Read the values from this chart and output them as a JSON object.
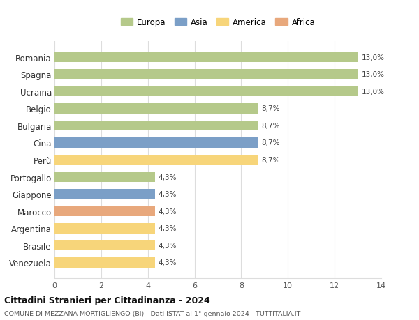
{
  "categories": [
    "Romania",
    "Spagna",
    "Ucraina",
    "Belgio",
    "Bulgaria",
    "Cina",
    "Perù",
    "Portogallo",
    "Giappone",
    "Marocco",
    "Argentina",
    "Brasile",
    "Venezuela"
  ],
  "values": [
    13.0,
    13.0,
    13.0,
    8.7,
    8.7,
    8.7,
    8.7,
    4.3,
    4.3,
    4.3,
    4.3,
    4.3,
    4.3
  ],
  "labels": [
    "13,0%",
    "13,0%",
    "13,0%",
    "8,7%",
    "8,7%",
    "8,7%",
    "8,7%",
    "4,3%",
    "4,3%",
    "4,3%",
    "4,3%",
    "4,3%",
    "4,3%"
  ],
  "continents": [
    "Europa",
    "Europa",
    "Europa",
    "Europa",
    "Europa",
    "Asia",
    "America",
    "Europa",
    "Asia",
    "Africa",
    "America",
    "America",
    "America"
  ],
  "colors": {
    "Europa": "#b5c98a",
    "Asia": "#7b9fc7",
    "America": "#f7d57a",
    "Africa": "#e8a87c"
  },
  "legend_order": [
    "Europa",
    "Asia",
    "America",
    "Africa"
  ],
  "xlim": [
    0,
    14
  ],
  "xticks": [
    0,
    2,
    4,
    6,
    8,
    10,
    12,
    14
  ],
  "title": "Cittadini Stranieri per Cittadinanza - 2024",
  "subtitle": "COMUNE DI MEZZANA MORTIGLIENGO (BI) - Dati ISTAT al 1° gennaio 2024 - TUTTITALIA.IT",
  "bg_color": "#ffffff",
  "grid_color": "#dddddd"
}
